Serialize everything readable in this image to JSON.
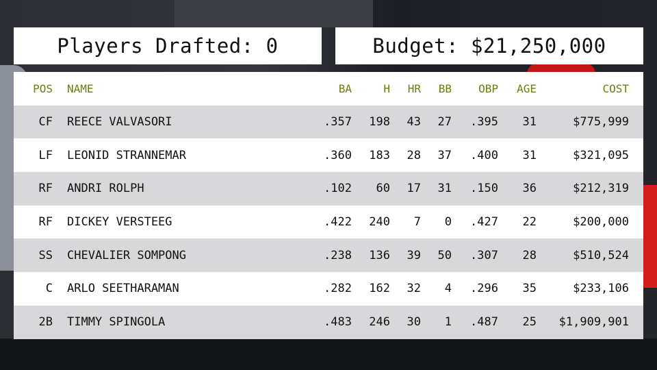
{
  "header": {
    "drafted_label": "Players Drafted: 0",
    "budget_label": "Budget: $21,250,000"
  },
  "table": {
    "columns": [
      "POS",
      "NAME",
      "BA",
      "H",
      "HR",
      "BB",
      "OBP",
      "AGE",
      "COST"
    ],
    "rows": [
      [
        "CF",
        "REECE VALVASORI",
        ".357",
        "198",
        "43",
        "27",
        ".395",
        "31",
        "$775,999"
      ],
      [
        "LF",
        "LEONID STRANNEMAR",
        ".360",
        "183",
        "28",
        "37",
        ".400",
        "31",
        "$321,095"
      ],
      [
        "RF",
        "ANDRI ROLPH",
        ".102",
        "60",
        "17",
        "31",
        ".150",
        "36",
        "$212,319"
      ],
      [
        "RF",
        "DICKEY VERSTEEG",
        ".422",
        "240",
        "7",
        "0",
        ".427",
        "22",
        "$200,000"
      ],
      [
        "SS",
        "CHEVALIER SOMPONG",
        ".238",
        "136",
        "39",
        "50",
        ".307",
        "28",
        "$510,524"
      ],
      [
        "C",
        "ARLO SEETHARAMAN",
        ".282",
        "162",
        "32",
        "4",
        ".296",
        "35",
        "$233,106"
      ],
      [
        "2B",
        "TIMMY SPINGOLA",
        ".483",
        "246",
        "30",
        "1",
        ".487",
        "25",
        "$1,909,901"
      ]
    ]
  },
  "colors": {
    "header_text": "#6e7a12",
    "row_alt": "#d8d8da",
    "row": "#ffffff",
    "background": "#15181d",
    "accent_red": "#d61d1d"
  }
}
